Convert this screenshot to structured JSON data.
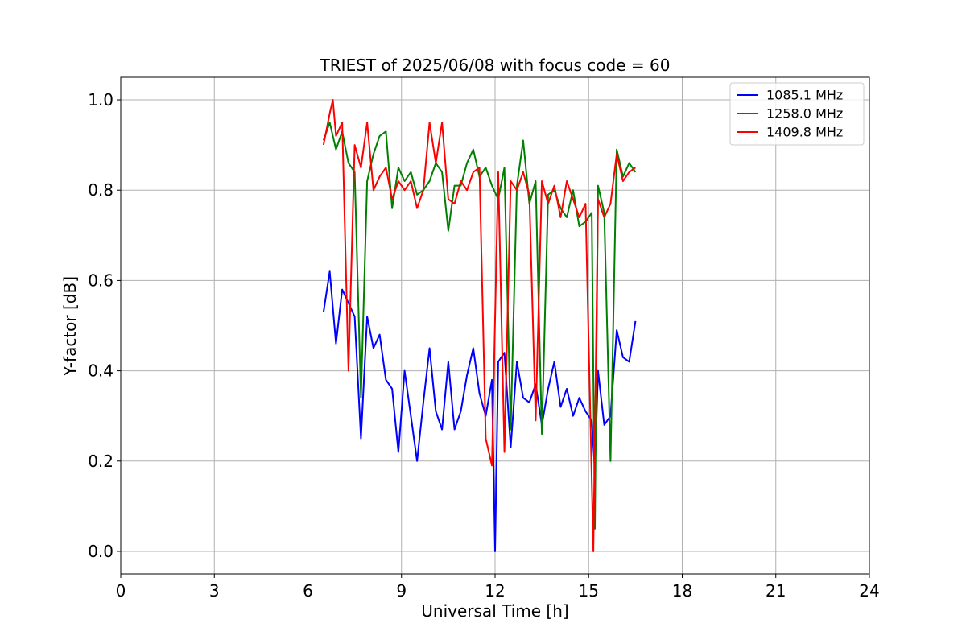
{
  "chart_data": {
    "type": "line",
    "title": "TRIEST of 2025/06/08 with focus code = 60",
    "xlabel": "Universal Time [h]",
    "ylabel": "Y-factor [dB]",
    "xlim": [
      0,
      24
    ],
    "ylim": [
      -0.05,
      1.05
    ],
    "xticks": [
      0,
      3,
      6,
      9,
      12,
      15,
      18,
      21,
      24
    ],
    "yticks": [
      0.0,
      0.2,
      0.4,
      0.6,
      0.8,
      1.0
    ],
    "xtick_labels": [
      "0",
      "3",
      "6",
      "9",
      "12",
      "15",
      "18",
      "21",
      "24"
    ],
    "ytick_labels": [
      "0.0",
      "0.2",
      "0.4",
      "0.6",
      "0.8",
      "1.0"
    ],
    "grid": true,
    "legend_position": "top-right",
    "series": [
      {
        "name": "1085.1 MHz",
        "color": "#0000ff",
        "x": [
          6.5,
          6.7,
          6.9,
          7.1,
          7.3,
          7.5,
          7.7,
          7.9,
          8.1,
          8.3,
          8.5,
          8.7,
          8.9,
          9.1,
          9.3,
          9.5,
          9.7,
          9.9,
          10.1,
          10.3,
          10.5,
          10.7,
          10.9,
          11.1,
          11.3,
          11.5,
          11.7,
          11.9,
          12.0,
          12.1,
          12.3,
          12.5,
          12.7,
          12.9,
          13.1,
          13.3,
          13.5,
          13.7,
          13.9,
          14.1,
          14.3,
          14.5,
          14.7,
          14.9,
          15.1,
          15.2,
          15.3,
          15.5,
          15.7,
          15.9,
          16.1,
          16.3,
          16.5
        ],
        "y": [
          0.53,
          0.62,
          0.46,
          0.58,
          0.55,
          0.52,
          0.25,
          0.52,
          0.45,
          0.48,
          0.38,
          0.36,
          0.22,
          0.4,
          0.3,
          0.2,
          0.33,
          0.45,
          0.31,
          0.27,
          0.42,
          0.27,
          0.31,
          0.39,
          0.45,
          0.35,
          0.3,
          0.38,
          0.0,
          0.42,
          0.44,
          0.23,
          0.42,
          0.34,
          0.33,
          0.37,
          0.28,
          0.36,
          0.42,
          0.32,
          0.36,
          0.3,
          0.34,
          0.31,
          0.29,
          0.18,
          0.4,
          0.28,
          0.3,
          0.49,
          0.43,
          0.42,
          0.51
        ]
      },
      {
        "name": "1258.0 MHz",
        "color": "#008000",
        "x": [
          6.5,
          6.7,
          6.9,
          7.1,
          7.3,
          7.5,
          7.7,
          7.9,
          8.1,
          8.3,
          8.5,
          8.7,
          8.9,
          9.1,
          9.3,
          9.5,
          9.7,
          9.9,
          10.1,
          10.3,
          10.5,
          10.7,
          10.9,
          11.1,
          11.3,
          11.5,
          11.7,
          11.9,
          12.1,
          12.3,
          12.5,
          12.7,
          12.9,
          13.1,
          13.3,
          13.5,
          13.7,
          13.9,
          14.1,
          14.3,
          14.5,
          14.7,
          14.9,
          15.1,
          15.2,
          15.3,
          15.5,
          15.7,
          15.9,
          16.1,
          16.3,
          16.5
        ],
        "y": [
          0.91,
          0.95,
          0.89,
          0.93,
          0.86,
          0.84,
          0.34,
          0.82,
          0.88,
          0.92,
          0.93,
          0.76,
          0.85,
          0.82,
          0.84,
          0.79,
          0.8,
          0.82,
          0.86,
          0.84,
          0.71,
          0.81,
          0.81,
          0.86,
          0.89,
          0.83,
          0.85,
          0.81,
          0.78,
          0.85,
          0.27,
          0.81,
          0.91,
          0.77,
          0.82,
          0.26,
          0.79,
          0.8,
          0.76,
          0.74,
          0.8,
          0.72,
          0.73,
          0.75,
          0.05,
          0.81,
          0.75,
          0.2,
          0.89,
          0.83,
          0.86,
          0.84
        ]
      },
      {
        "name": "1409.8 MHz",
        "color": "#ff0000",
        "x": [
          6.5,
          6.7,
          6.8,
          6.9,
          7.1,
          7.3,
          7.5,
          7.7,
          7.9,
          8.1,
          8.3,
          8.5,
          8.7,
          8.9,
          9.1,
          9.3,
          9.5,
          9.7,
          9.9,
          10.1,
          10.3,
          10.5,
          10.7,
          10.9,
          11.1,
          11.3,
          11.5,
          11.7,
          11.9,
          12.1,
          12.3,
          12.5,
          12.7,
          12.9,
          13.1,
          13.3,
          13.5,
          13.7,
          13.9,
          14.1,
          14.3,
          14.5,
          14.7,
          14.9,
          15.1,
          15.15,
          15.3,
          15.5,
          15.7,
          15.9,
          16.1,
          16.3,
          16.5
        ],
        "y": [
          0.9,
          0.97,
          1.0,
          0.92,
          0.95,
          0.4,
          0.9,
          0.85,
          0.95,
          0.8,
          0.83,
          0.85,
          0.78,
          0.82,
          0.8,
          0.82,
          0.76,
          0.8,
          0.95,
          0.86,
          0.95,
          0.78,
          0.77,
          0.82,
          0.8,
          0.84,
          0.85,
          0.25,
          0.19,
          0.84,
          0.22,
          0.82,
          0.8,
          0.84,
          0.79,
          0.29,
          0.82,
          0.77,
          0.81,
          0.74,
          0.82,
          0.78,
          0.74,
          0.77,
          0.16,
          0.0,
          0.78,
          0.74,
          0.77,
          0.88,
          0.82,
          0.84,
          0.85
        ]
      }
    ]
  }
}
